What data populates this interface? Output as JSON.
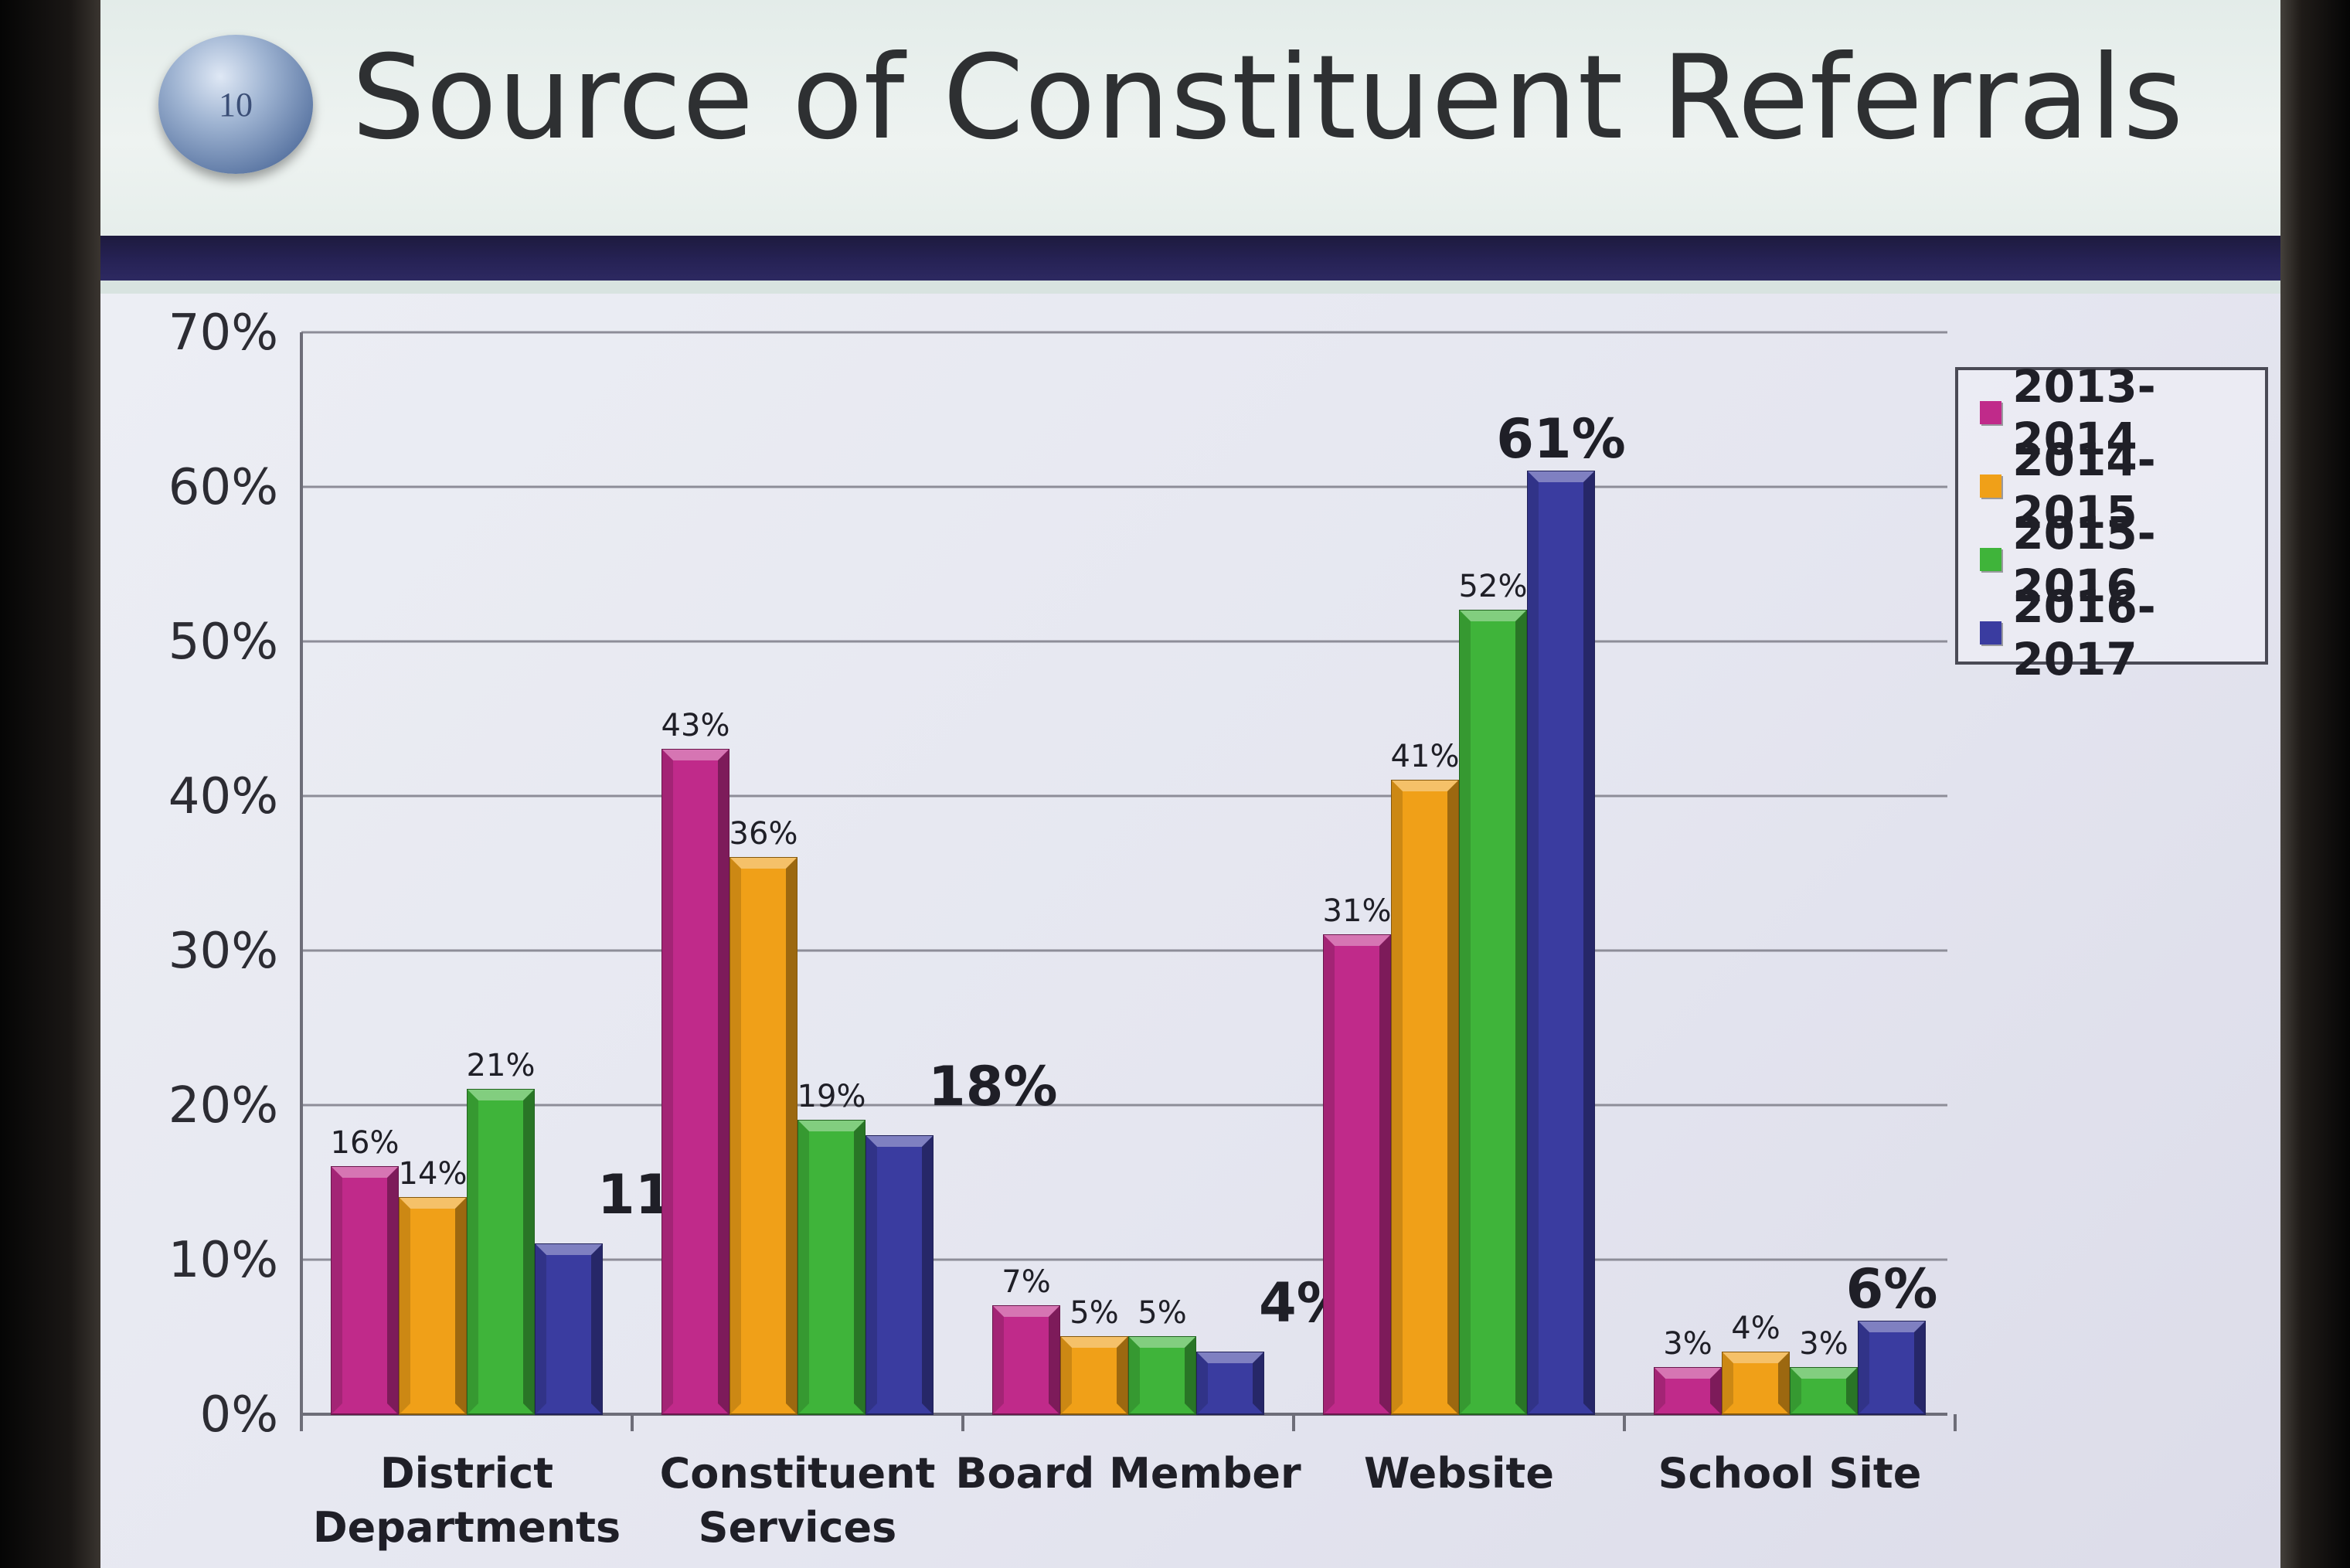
{
  "slide": {
    "number": "10",
    "title": "Source of Constituent Referrals"
  },
  "colors": {
    "title_rule": "#262255",
    "series": [
      "#c02a8a",
      "#f0a018",
      "#3fb43a",
      "#3a3ca0"
    ]
  },
  "chart_data": {
    "type": "bar",
    "title": "",
    "xlabel": "",
    "ylabel": "",
    "ylim": [
      0,
      70
    ],
    "y_tick_labels": [
      "0%",
      "10%",
      "20%",
      "30%",
      "40%",
      "50%",
      "60%",
      "70%"
    ],
    "grid": true,
    "legend_position": "top-right",
    "categories": [
      [
        "District",
        "Departments"
      ],
      [
        "Constituent",
        "Services"
      ],
      [
        "Board Member"
      ],
      [
        "Website"
      ],
      [
        "School Site"
      ]
    ],
    "series": [
      {
        "name": "2013-2014",
        "values": [
          16,
          43,
          7,
          31,
          3
        ],
        "labels": [
          "16%",
          "43%",
          "7%",
          "31%",
          "3%"
        ]
      },
      {
        "name": "2014-2015",
        "values": [
          14,
          36,
          5,
          41,
          4
        ],
        "labels": [
          "14%",
          "36%",
          "5%",
          "41%",
          "4%"
        ]
      },
      {
        "name": "2015-2016",
        "values": [
          21,
          19,
          5,
          52,
          3
        ],
        "labels": [
          "21%",
          "19%",
          "5%",
          "52%",
          "3%"
        ]
      },
      {
        "name": "2016-2017",
        "values": [
          11,
          18,
          4,
          61,
          6
        ],
        "labels": [
          "11%",
          "18%",
          "4%",
          "61%",
          "6%"
        ]
      }
    ]
  }
}
